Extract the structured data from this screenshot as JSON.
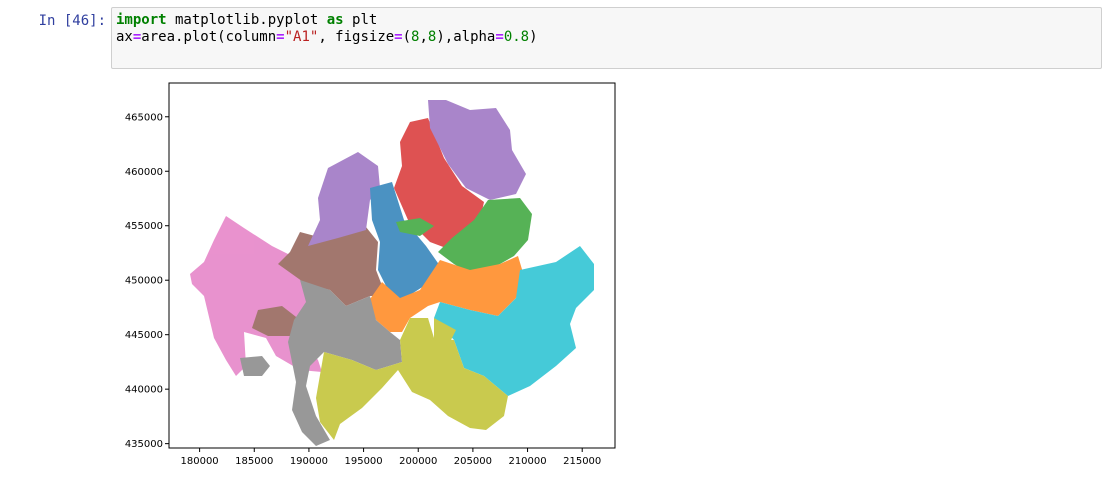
{
  "cell": {
    "prompt": "In [46]:",
    "line1": {
      "kw1": "import",
      "mod": " matplotlib.pyplot ",
      "kw2": "as",
      "alias": " plt"
    },
    "line2": {
      "p1": "ax",
      "eq1": "=",
      "p2": "area.plot(column",
      "eq2": "=",
      "s1": "\"A1\"",
      "p3": ", figsize",
      "eq3": "=",
      "p4": "(",
      "n1": "8",
      "p5": ",",
      "n2": "8",
      "p6": "),alpha",
      "eq4": "=",
      "n3": "0.8",
      "p7": ")"
    }
  },
  "chart_data": {
    "type": "map",
    "xticks": [
      "180000",
      "185000",
      "190000",
      "195000",
      "200000",
      "205000",
      "210000",
      "215000"
    ],
    "yticks": [
      "435000",
      "440000",
      "445000",
      "450000",
      "455000",
      "460000",
      "465000"
    ],
    "alpha": 0.8,
    "xlim": [
      177200,
      218000
    ],
    "ylim": [
      434600,
      468100
    ],
    "region_colors": [
      "#1f77b4",
      "#ff7f0e",
      "#2ca02c",
      "#d62728",
      "#9467bd",
      "#8c564b",
      "#e377c2",
      "#7f7f7f",
      "#bcbd22",
      "#17becf"
    ]
  }
}
